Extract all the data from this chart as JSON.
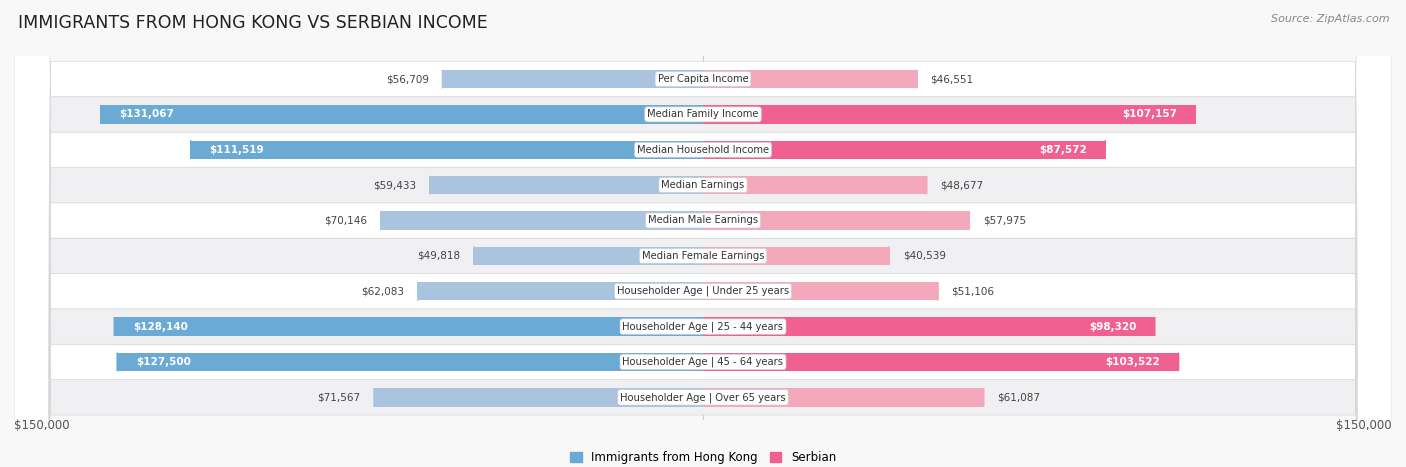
{
  "title": "IMMIGRANTS FROM HONG KONG VS SERBIAN INCOME",
  "source": "Source: ZipAtlas.com",
  "categories": [
    "Per Capita Income",
    "Median Family Income",
    "Median Household Income",
    "Median Earnings",
    "Median Male Earnings",
    "Median Female Earnings",
    "Householder Age | Under 25 years",
    "Householder Age | 25 - 44 years",
    "Householder Age | 45 - 64 years",
    "Householder Age | Over 65 years"
  ],
  "hk_values": [
    56709,
    131067,
    111519,
    59433,
    70146,
    49818,
    62083,
    128140,
    127500,
    71567
  ],
  "serbian_values": [
    46551,
    107157,
    87572,
    48677,
    57975,
    40539,
    51106,
    98320,
    103522,
    61087
  ],
  "hk_color_light": "#aac4e0",
  "hk_color_dark": "#6baad4",
  "serbian_color_light": "#f4a8bc",
  "serbian_color_dark": "#f06090",
  "row_colors": [
    "#f0f0f2",
    "#ffffff"
  ],
  "row_border_color": "#d8d8d8",
  "max_value": 150000,
  "legend_hk": "Immigrants from Hong Kong",
  "legend_serbian": "Serbian",
  "axis_label_left": "$150,000",
  "axis_label_right": "$150,000",
  "inside_label_threshold_hk": 90000,
  "inside_label_threshold_serb": 80000
}
